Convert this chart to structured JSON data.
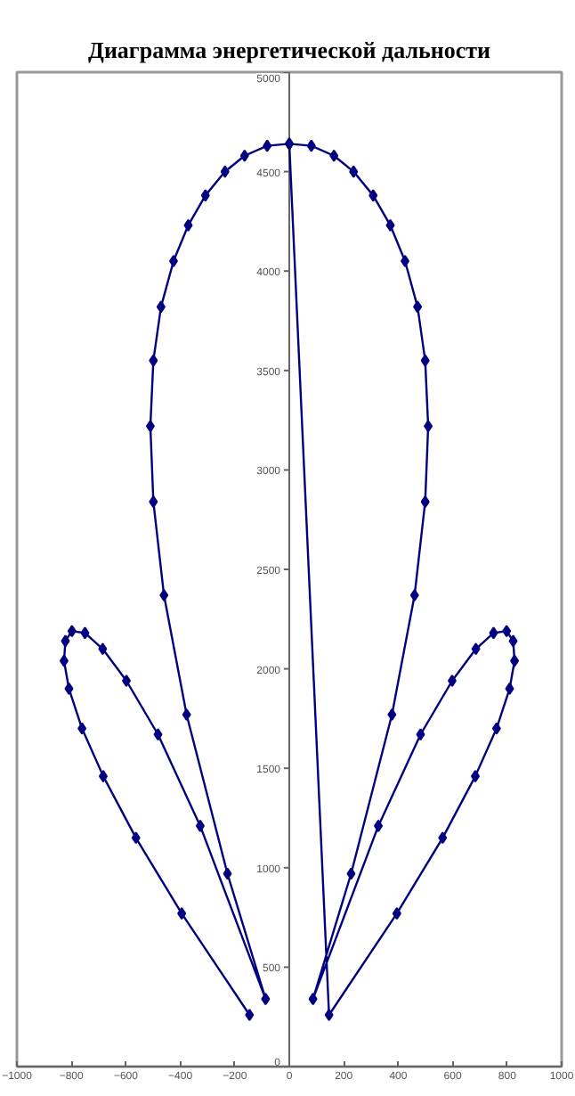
{
  "chart_data": {
    "type": "line",
    "title": "Диаграмма энергетической дальности",
    "x": [
      -146,
      -395,
      -563,
      -683,
      -761,
      -809,
      -827,
      -822,
      -798,
      -750,
      -685,
      -598,
      -482,
      -327,
      -87,
      -227,
      -377,
      -460,
      -499,
      -510,
      -499,
      -471,
      -425,
      -371,
      -308,
      -236,
      -164,
      -81,
      0,
      81,
      164,
      236,
      308,
      371,
      425,
      471,
      499,
      510,
      499,
      460,
      377,
      227,
      87,
      327,
      482,
      598,
      685,
      750,
      798,
      822,
      827,
      809,
      761,
      683,
      563,
      395,
      146,
      0
    ],
    "series": [
      {
        "color": "#000080",
        "values": [
          260,
          770,
          1150,
          1460,
          1700,
          1900,
          2040,
          2140,
          2190,
          2180,
          2100,
          1940,
          1670,
          1210,
          340,
          970,
          1770,
          2370,
          2840,
          3220,
          3550,
          3820,
          4050,
          4230,
          4380,
          4500,
          4580,
          4630,
          4640,
          4630,
          4580,
          4500,
          4380,
          4230,
          4050,
          3820,
          3550,
          3220,
          2840,
          2370,
          1770,
          970,
          340,
          1210,
          1670,
          1940,
          2100,
          2180,
          2190,
          2140,
          2040,
          1900,
          1700,
          1460,
          1150,
          770,
          260,
          4640
        ]
      }
    ],
    "xlim": [
      -1000,
      1000
    ],
    "ylim": [
      0,
      5000
    ],
    "xticks": [
      -1000,
      -800,
      -600,
      -400,
      -200,
      0,
      200,
      400,
      600,
      800,
      1000
    ],
    "yticks": [
      0,
      500,
      1000,
      1500,
      2000,
      2500,
      3000,
      3500,
      4000,
      4500,
      5000
    ],
    "marker": "diamond",
    "line_style": "solid"
  }
}
